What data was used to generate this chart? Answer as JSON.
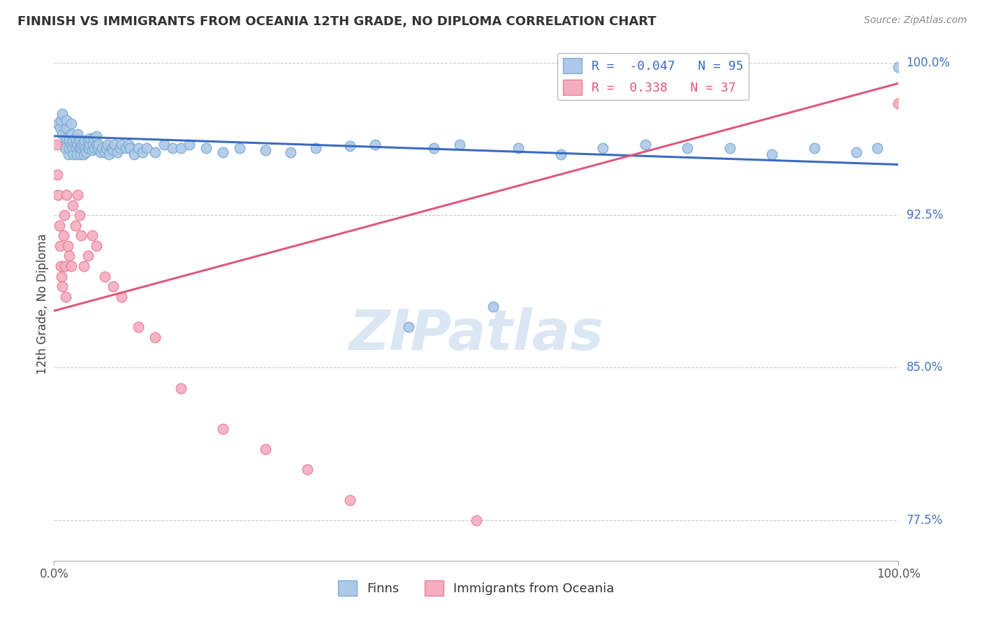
{
  "title": "FINNISH VS IMMIGRANTS FROM OCEANIA 12TH GRADE, NO DIPLOMA CORRELATION CHART",
  "source": "Source: ZipAtlas.com",
  "xlabel_finns": "Finns",
  "xlabel_immigrants": "Immigrants from Oceania",
  "ylabel": "12th Grade, No Diploma",
  "xmin": 0.0,
  "xmax": 1.0,
  "ymin": 0.755,
  "ymax": 1.008,
  "yticks": [
    0.775,
    0.85,
    0.925,
    1.0
  ],
  "ytick_labels": [
    "77.5%",
    "85.0%",
    "92.5%",
    "100.0%"
  ],
  "xtick_labels": [
    "0.0%",
    "100.0%"
  ],
  "R_finns": -0.047,
  "N_finns": 95,
  "R_immigrants": 0.338,
  "N_immigrants": 37,
  "finns_color": "#adc8e8",
  "finns_edge_color": "#7aaed4",
  "immigrants_color": "#f5adc0",
  "immigrants_edge_color": "#e8809a",
  "trend_finns_color": "#3a6abf",
  "trend_immigrants_color": "#e05878",
  "watermark": "ZIPatlas",
  "watermark_color": "#c5d8ed",
  "finns_x": [
    0.005,
    0.007,
    0.008,
    0.01,
    0.01,
    0.012,
    0.013,
    0.015,
    0.015,
    0.015,
    0.017,
    0.018,
    0.018,
    0.02,
    0.02,
    0.02,
    0.022,
    0.022,
    0.023,
    0.025,
    0.025,
    0.026,
    0.027,
    0.028,
    0.028,
    0.03,
    0.03,
    0.031,
    0.032,
    0.033,
    0.035,
    0.035,
    0.036,
    0.037,
    0.038,
    0.04,
    0.04,
    0.041,
    0.042,
    0.043,
    0.045,
    0.046,
    0.047,
    0.048,
    0.05,
    0.05,
    0.052,
    0.053,
    0.055,
    0.057,
    0.06,
    0.062,
    0.063,
    0.065,
    0.068,
    0.07,
    0.072,
    0.075,
    0.078,
    0.08,
    0.085,
    0.088,
    0.09,
    0.095,
    0.1,
    0.105,
    0.11,
    0.12,
    0.13,
    0.14,
    0.15,
    0.16,
    0.18,
    0.2,
    0.22,
    0.25,
    0.28,
    0.31,
    0.35,
    0.38,
    0.42,
    0.45,
    0.48,
    0.52,
    0.55,
    0.6,
    0.65,
    0.7,
    0.75,
    0.8,
    0.85,
    0.9,
    0.95,
    0.975,
    1.0
  ],
  "finns_y": [
    0.97,
    0.968,
    0.972,
    0.965,
    0.975,
    0.96,
    0.958,
    0.963,
    0.968,
    0.972,
    0.955,
    0.958,
    0.962,
    0.96,
    0.965,
    0.97,
    0.958,
    0.962,
    0.955,
    0.96,
    0.963,
    0.958,
    0.955,
    0.96,
    0.965,
    0.958,
    0.962,
    0.955,
    0.958,
    0.96,
    0.955,
    0.96,
    0.962,
    0.958,
    0.956,
    0.958,
    0.962,
    0.958,
    0.96,
    0.963,
    0.957,
    0.96,
    0.963,
    0.958,
    0.96,
    0.964,
    0.958,
    0.96,
    0.956,
    0.958,
    0.956,
    0.958,
    0.96,
    0.955,
    0.958,
    0.957,
    0.96,
    0.956,
    0.958,
    0.96,
    0.958,
    0.96,
    0.958,
    0.955,
    0.958,
    0.956,
    0.958,
    0.956,
    0.96,
    0.958,
    0.958,
    0.96,
    0.958,
    0.956,
    0.958,
    0.957,
    0.956,
    0.958,
    0.959,
    0.96,
    0.87,
    0.958,
    0.96,
    0.88,
    0.958,
    0.955,
    0.958,
    0.96,
    0.958,
    0.958,
    0.955,
    0.958,
    0.956,
    0.958,
    0.998
  ],
  "immigrants_x": [
    0.003,
    0.004,
    0.005,
    0.006,
    0.007,
    0.008,
    0.009,
    0.01,
    0.011,
    0.012,
    0.013,
    0.014,
    0.015,
    0.016,
    0.018,
    0.02,
    0.022,
    0.025,
    0.028,
    0.03,
    0.032,
    0.035,
    0.04,
    0.045,
    0.05,
    0.06,
    0.07,
    0.08,
    0.1,
    0.12,
    0.15,
    0.2,
    0.25,
    0.3,
    0.35,
    0.5,
    1.0
  ],
  "immigrants_y": [
    0.96,
    0.945,
    0.935,
    0.92,
    0.91,
    0.9,
    0.895,
    0.89,
    0.915,
    0.925,
    0.9,
    0.885,
    0.935,
    0.91,
    0.905,
    0.9,
    0.93,
    0.92,
    0.935,
    0.925,
    0.915,
    0.9,
    0.905,
    0.915,
    0.91,
    0.895,
    0.89,
    0.885,
    0.87,
    0.865,
    0.84,
    0.82,
    0.81,
    0.8,
    0.785,
    0.775,
    0.98
  ],
  "finns_trend_x": [
    0.0,
    1.0
  ],
  "finns_trend_y": [
    0.964,
    0.95
  ],
  "immigrants_trend_x": [
    0.0,
    1.0
  ],
  "immigrants_trend_y": [
    0.878,
    0.99
  ]
}
